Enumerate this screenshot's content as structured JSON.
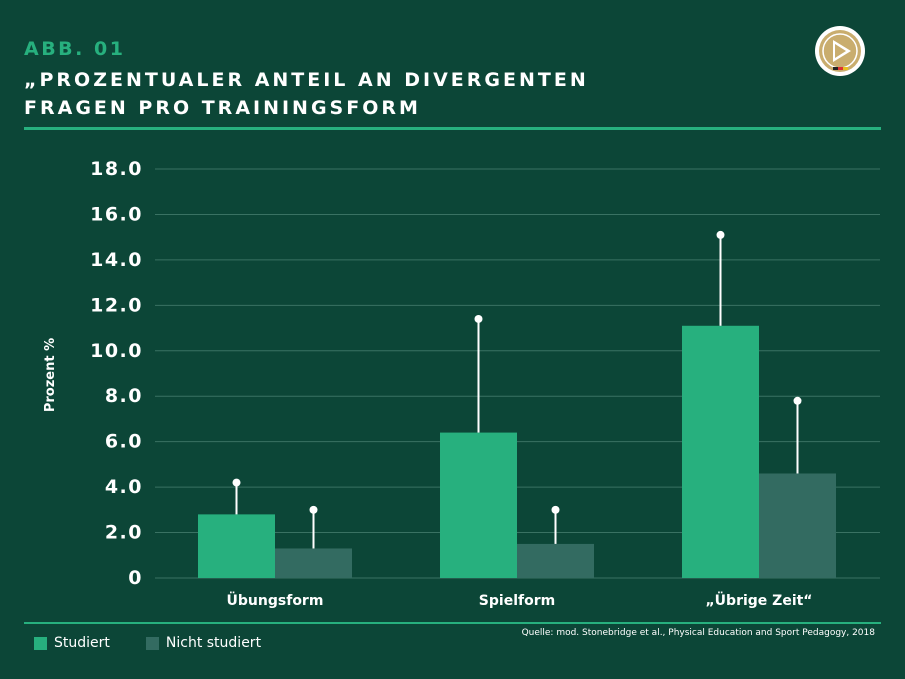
{
  "header": {
    "kicker": "ABB. 01",
    "title_line1": "„PROZENTUALER ANTEIL AN DIVERGENTEN",
    "title_line2": "FRAGEN PRO TRAININGSFORM"
  },
  "logo": {
    "icon": "dfb-emblem-icon"
  },
  "colors": {
    "background": "#0c4637",
    "studiert": "#27b07e",
    "nicht_studiert": "#336b61",
    "grid": "#3a7263",
    "accent": "#27b07e"
  },
  "chart_data": {
    "type": "bar",
    "title": "„PROZENTUALER ANTEIL AN DIVERGENTEN FRAGEN PRO TRAININGSFORM",
    "xlabel": "",
    "ylabel": "Prozent %",
    "ylim": [
      0,
      18
    ],
    "yticks": [
      "0",
      "2.0",
      "4.0",
      "6.0",
      "8.0",
      "10.0",
      "12.0",
      "14.0",
      "16.0",
      "18.0"
    ],
    "categories": [
      "Übungsform",
      "Spielform",
      "„Übrige Zeit“"
    ],
    "series": [
      {
        "name": "Studiert",
        "values": [
          2.8,
          6.4,
          11.1
        ],
        "error_upper": [
          4.2,
          11.4,
          15.1
        ]
      },
      {
        "name": "Nicht studiert",
        "values": [
          1.3,
          1.5,
          4.6
        ],
        "error_upper": [
          3.0,
          3.0,
          7.8
        ]
      }
    ],
    "grid": true,
    "legend_position": "bottom-left"
  },
  "legend": {
    "items": [
      {
        "label": "Studiert"
      },
      {
        "label": "Nicht studiert"
      }
    ]
  },
  "source": "Quelle: mod. Stonebridge et al., Physical Education and Sport Pedagogy, 2018"
}
